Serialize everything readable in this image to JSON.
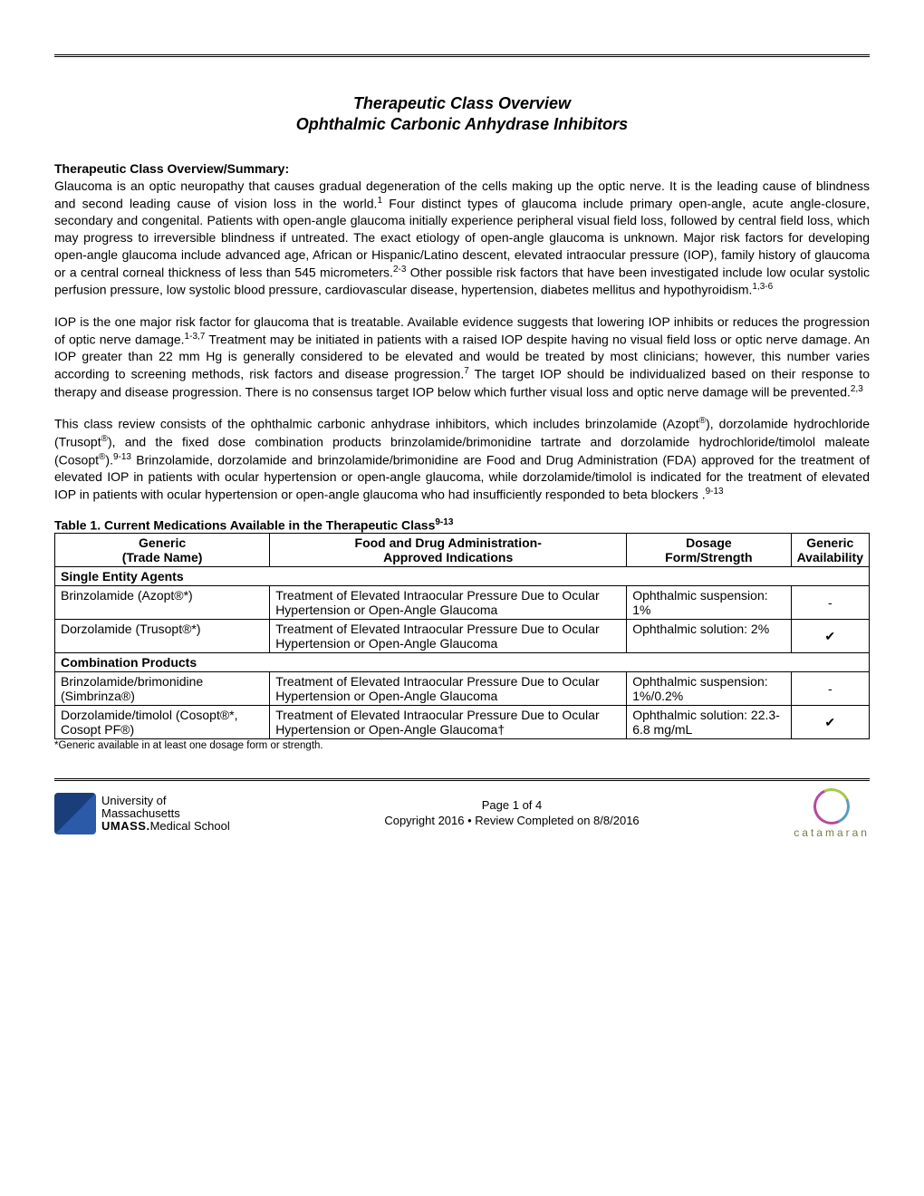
{
  "title_line1": "Therapeutic Class Overview",
  "title_line2": "Ophthalmic Carbonic Anhydrase Inhibitors",
  "section_header": "Therapeutic Class Overview/Summary:",
  "para1_a": "Glaucoma is an optic neuropathy that causes gradual degeneration of the cells making up the optic nerve. It is the leading cause of blindness and second leading cause of vision loss in the world.",
  "para1_sup1": "1",
  "para1_b": " Four distinct types of glaucoma include primary open-angle, acute angle-closure, secondary and congenital. Patients with open-angle glaucoma initially experience peripheral visual field loss, followed by central field loss, which may progress to irreversible blindness if untreated. The exact etiology of open-angle glaucoma is unknown. Major risk factors for developing open-angle glaucoma include advanced age, African or Hispanic/Latino descent, elevated intraocular pressure (IOP), family history of glaucoma or a central corneal thickness of less than 545 micrometers.",
  "para1_sup2": "2-3",
  "para1_c": " Other possible risk factors that have been investigated include low ocular systolic perfusion pressure, low systolic blood pressure, cardiovascular disease, hypertension, diabetes mellitus and hypothyroidism.",
  "para1_sup3": "1,3-6",
  "para2_a": "IOP is the one major risk factor for glaucoma that is treatable. Available evidence suggests that lowering IOP inhibits or reduces the progression of optic nerve damage.",
  "para2_sup1": "1-3,7",
  "para2_b": " Treatment may be initiated in patients with a raised IOP despite having no visual field loss or optic nerve damage. An IOP greater than 22 mm Hg is generally considered to be elevated and would be treated by most clinicians; however, this number varies according to screening methods, risk factors and disease progression.",
  "para2_sup2": "7",
  "para2_c": " The target IOP should be individualized based on their response to therapy and disease progression. There is no consensus target IOP below which further visual loss and optic nerve damage will be prevented.",
  "para2_sup3": "2,3",
  "para3_a": "This class review consists of the ophthalmic carbonic anhydrase inhibitors, which includes brinzolamide (Azopt",
  "para3_reg1": "®",
  "para3_b": "), dorzolamide hydrochloride (Trusopt",
  "para3_reg2": "®",
  "para3_c": "), and the fixed dose combination products brinzolamide/brimonidine tartrate  and dorzolamide hydrochloride/timolol maleate (Cosopt",
  "para3_reg3": "®",
  "para3_d": ").",
  "para3_sup1": "9-13",
  "para3_e": " Brinzolamide, dorzolamide and brinzolamide/brimonidine are Food and Drug Administration (FDA) approved for the treatment of elevated IOP in patients with ocular hypertension or open-angle glaucoma, while dorzolamide/timolol is indicated for the treatment of elevated IOP in patients with ocular hypertension or open-angle glaucoma who had insufficiently responded to beta blockers .",
  "para3_sup2": "9-13",
  "table_caption": "Table 1. Current Medications Available in the Therapeutic Class",
  "table_caption_sup": "9-13",
  "table": {
    "headers": {
      "c1a": "Generic",
      "c1b": "(Trade Name)",
      "c2a": "Food and Drug Administration-",
      "c2b": "Approved Indications",
      "c3a": "Dosage",
      "c3b": "Form/Strength",
      "c4a": "Generic",
      "c4b": "Availability"
    },
    "subhead1": "Single Entity Agents",
    "row1": {
      "name": "Brinzolamide (Azopt®*)",
      "ind": "Treatment of Elevated Intraocular Pressure Due to Ocular Hypertension or Open-Angle Glaucoma",
      "dose": "Ophthalmic suspension: 1%",
      "avail": "-"
    },
    "row2": {
      "name": "Dorzolamide (Trusopt®*)",
      "ind": "Treatment of Elevated Intraocular Pressure Due to Ocular Hypertension or Open-Angle Glaucoma",
      "dose": "Ophthalmic solution: 2%",
      "avail": "✔"
    },
    "subhead2": "Combination Products",
    "row3": {
      "name": "Brinzolamide/brimonidine (Simbrinza®)",
      "ind": "Treatment of Elevated Intraocular Pressure Due to Ocular Hypertension or Open-Angle Glaucoma",
      "dose": "Ophthalmic suspension: 1%/0.2%",
      "avail": "-"
    },
    "row4": {
      "name": "Dorzolamide/timolol (Cosopt®*, Cosopt PF®)",
      "ind": "Treatment of Elevated Intraocular Pressure Due to Ocular Hypertension or Open-Angle Glaucoma†",
      "dose": "Ophthalmic solution: 22.3-6.8 mg/mL",
      "avail": "✔"
    }
  },
  "footnote": "*Generic available in at least one dosage form or strength.",
  "footer": {
    "page": "Page 1 of 4",
    "copyright": "Copyright 2016 • Review Completed on 8/8/2016",
    "umass1": "University of",
    "umass2": "Massachusetts",
    "umass3": "UMASS.",
    "umass4": "Medical School",
    "catamaran": "catamaran"
  },
  "colors": {
    "text": "#000000",
    "background": "#ffffff",
    "umass_blue": "#1a3e7a",
    "catamaran_text": "#7a7a46"
  },
  "typography": {
    "body_fontsize_pt": 11,
    "title_fontsize_pt": 13,
    "footnote_fontsize_pt": 8.5
  }
}
